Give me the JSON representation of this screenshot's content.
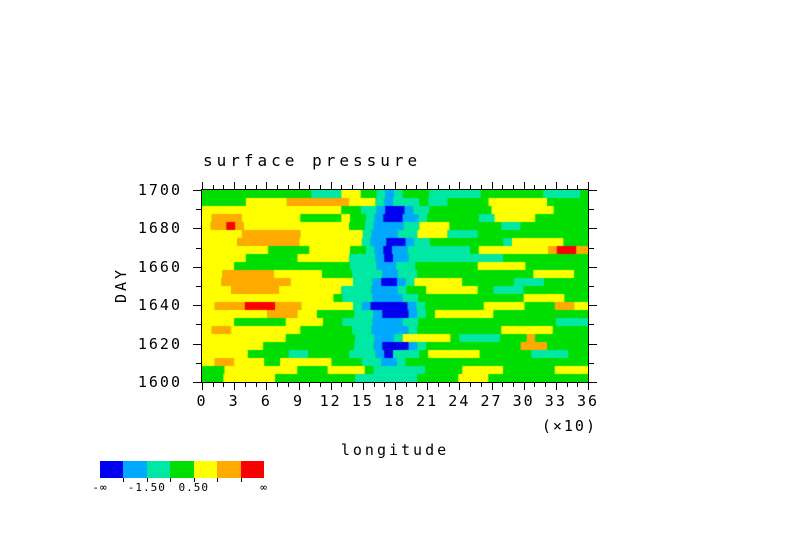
{
  "figure": {
    "title": "surface pressure",
    "ylabel": "DAY",
    "xlabel": "longitude",
    "x_multiplier": "(×10)"
  },
  "axes": {
    "x_tick_labels": [
      "0",
      "3",
      "6",
      "9",
      "12",
      "15",
      "18",
      "21",
      "24",
      "27",
      "30",
      "33",
      "36"
    ],
    "x_major_step": 3,
    "x_minor_step": 1,
    "x_range": [
      0,
      36
    ],
    "y_tick_labels": [
      "1700",
      "1680",
      "1660",
      "1640",
      "1620",
      "1600"
    ],
    "y_major_step": 20,
    "y_minor_step": 10,
    "y_range": [
      1600,
      1700
    ]
  },
  "colorbar": {
    "colors": [
      "#0000f0",
      "#00a8ff",
      "#00e8a4",
      "#00dd00",
      "#ffff00",
      "#ffaa00",
      "#fa0000"
    ],
    "boundaries": [
      -2.5,
      -1.5,
      -0.5,
      0.5,
      1.5,
      2.5
    ],
    "labels": [
      {
        "text": "-∞",
        "at": "start"
      },
      {
        "text": "-1.50",
        "at": 2
      },
      {
        "text": "0.50",
        "at": 4
      },
      {
        "text": "∞",
        "at": "end"
      }
    ]
  },
  "chart_data": {
    "type": "heatmap",
    "title": "surface pressure",
    "xlabel": "longitude (×10)",
    "ylabel": "DAY",
    "x_range": [
      0,
      36
    ],
    "y_range": [
      1600,
      1700
    ],
    "grid": "off",
    "levels": [
      -2.5,
      -1.5,
      -0.5,
      0.5,
      1.5,
      2.5
    ],
    "palette": [
      "#0000f0",
      "#00a8ff",
      "#00e8a4",
      "#00dd00",
      "#ffff00",
      "#ffaa00",
      "#fa0000"
    ],
    "encoding": "24 rows (day 1700 top to 1600 bottom) x 36 cols (lon 0 to 360); each char is a palette color index",
    "rows": [
      "333333333322244321233222223333332223",
      "333344445555554421223223333444443333",
      "444444444444433210012333333444444333",
      "455544444333343210012333332444433333",
      "456544444444443211124443333322333333",
      "444455555444444211224442223333333333",
      "444555555444444210012333333324444433",
      "444444333344443210122222234444445665",
      "444433333444442210122222222233333333",
      "444333333333332211223333334444333333",
      "445555544443332221223333333333344443",
      "445555554444442210124444333332223333",
      "444555544444422211233444443222333333",
      "444444444444322211123333333333444433",
      "455566655444442100012333334444333554",
      "444444555443332210012344444333333333",
      "444333334443322211123333333333333222",
      "455444444333332211123333333344444333",
      "444444443333332211244443222233533333",
      "444444333333332210012333333333553333",
      "444433332233332210223444443333322233",
      "455444344444333221233333333333333333",
      "334444444333444322222333444433333444",
      "334444433333332222223333444333333333"
    ]
  }
}
